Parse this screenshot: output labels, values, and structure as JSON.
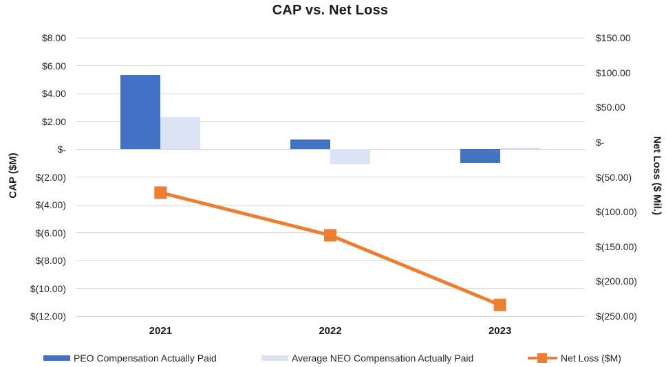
{
  "title": "CAP vs. Net Loss",
  "chart_data": {
    "type": "combo-bar-line",
    "categories": [
      "2021",
      "2022",
      "2023"
    ],
    "bar_series": [
      {
        "name": "PEO Compensation Actually Paid",
        "color": "#4472C4",
        "axis": "left",
        "values": [
          5.35,
          0.7,
          -1.0
        ]
      },
      {
        "name": "Average NEO Compensation Actually Paid",
        "color": "#DCE4F3",
        "axis": "left",
        "values": [
          2.3,
          -1.1,
          0.1
        ]
      }
    ],
    "line_series": {
      "name": "Net Loss ($M)",
      "color": "#ED7D31",
      "axis": "right",
      "marker": "square",
      "values": [
        -72.5,
        -133.8,
        -233.9
      ]
    },
    "left_axis": {
      "title": "CAP ($M)",
      "min": -12,
      "max": 8,
      "ticks": [
        {
          "v": 8,
          "label": "$8.00"
        },
        {
          "v": 6,
          "label": "$6.00"
        },
        {
          "v": 4,
          "label": "$4.00"
        },
        {
          "v": 2,
          "label": "$2.00"
        },
        {
          "v": 0,
          "label": "$-"
        },
        {
          "v": -2,
          "label": "$(2.00)"
        },
        {
          "v": -4,
          "label": "$(4.00)"
        },
        {
          "v": -6,
          "label": "$(6.00)"
        },
        {
          "v": -8,
          "label": "$(8.00)"
        },
        {
          "v": -10,
          "label": "$(10.00)"
        },
        {
          "v": -12,
          "label": "$(12.00)"
        }
      ]
    },
    "right_axis": {
      "title": "Net Loss ($ Mil.)",
      "min": -250,
      "max": 150,
      "ticks": [
        {
          "v": 150,
          "label": "$150.00"
        },
        {
          "v": 100,
          "label": "$100.00"
        },
        {
          "v": 50,
          "label": "$50.00"
        },
        {
          "v": 0,
          "label": "$-"
        },
        {
          "v": -50,
          "label": "$(50.00)"
        },
        {
          "v": -100,
          "label": "$(100.00)"
        },
        {
          "v": -150,
          "label": "$(150.00)"
        },
        {
          "v": -200,
          "label": "$(200.00)"
        },
        {
          "v": -250,
          "label": "$(250.00)"
        }
      ]
    },
    "grid": true,
    "legend_position": "bottom"
  },
  "colors": {
    "gridline": "#d9d9d9",
    "text": "#262626"
  }
}
